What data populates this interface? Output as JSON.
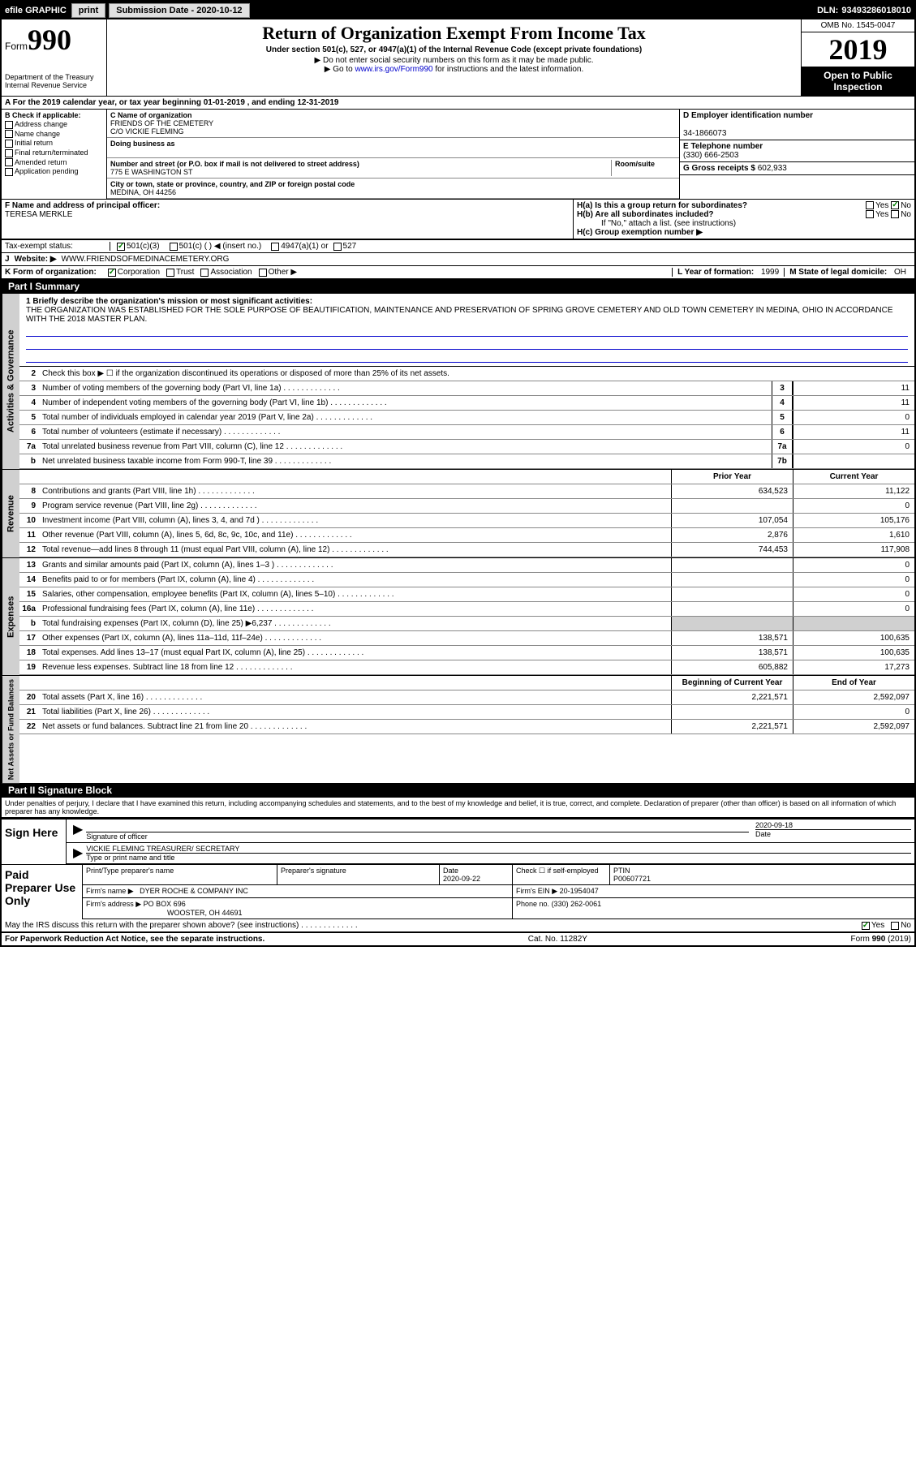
{
  "topbar": {
    "efile": "efile GRAPHIC",
    "print": "print",
    "subdate_lbl": "Submission Date -",
    "subdate": "2020-10-12",
    "dln_lbl": "DLN:",
    "dln": "93493286018010"
  },
  "header": {
    "form_lbl": "Form",
    "form_num": "990",
    "dept": "Department of the Treasury\nInternal Revenue Service",
    "title": "Return of Organization Exempt From Income Tax",
    "sub1": "Under section 501(c), 527, or 4947(a)(1) of the Internal Revenue Code (except private foundations)",
    "sub2": "▶ Do not enter social security numbers on this form as it may be made public.",
    "sub3_pre": "▶ Go to ",
    "sub3_link": "www.irs.gov/Form990",
    "sub3_post": " for instructions and the latest information.",
    "omb": "OMB No. 1545-0047",
    "year": "2019",
    "inspect": "Open to Public Inspection"
  },
  "taxyear": "A For the 2019 calendar year, or tax year beginning 01-01-2019    , and ending 12-31-2019",
  "sectionB": {
    "lbl": "B Check if applicable:",
    "opts": [
      "Address change",
      "Name change",
      "Initial return",
      "Final return/terminated",
      "Amended return",
      "Application pending"
    ]
  },
  "sectionC": {
    "name_lbl": "C Name of organization",
    "name": "FRIENDS OF THE CEMETERY",
    "care": "C/O VICKIE FLEMING",
    "dba_lbl": "Doing business as",
    "addr_lbl": "Number and street (or P.O. box if mail is not delivered to street address)",
    "room_lbl": "Room/suite",
    "addr": "775 E WASHINGTON ST",
    "city_lbl": "City or town, state or province, country, and ZIP or foreign postal code",
    "city": "MEDINA, OH  44256"
  },
  "sectionD": {
    "lbl": "D Employer identification number",
    "val": "34-1866073"
  },
  "sectionE": {
    "lbl": "E Telephone number",
    "val": "(330) 666-2503"
  },
  "sectionG": {
    "lbl": "G Gross receipts $",
    "val": "602,933"
  },
  "sectionF": {
    "lbl": "F  Name and address of principal officer:",
    "name": "TERESA MERKLE"
  },
  "sectionH": {
    "a": "H(a)  Is this a group return for subordinates?",
    "b": "H(b)  Are all subordinates included?",
    "b_note": "If \"No,\" attach a list. (see instructions)",
    "c": "H(c)  Group exemption number ▶",
    "yes": "Yes",
    "no": "No"
  },
  "taxstatus": {
    "lbl": "Tax-exempt status:",
    "o1": "501(c)(3)",
    "o2": "501(c) (  ) ◀ (insert no.)",
    "o3": "4947(a)(1) or",
    "o4": "527"
  },
  "website": {
    "lbl": "J",
    "lbl2": "Website: ▶",
    "val": "WWW.FRIENDSOFMEDINACEMETERY.ORG"
  },
  "sectionK": {
    "lbl": "K Form of organization:",
    "o1": "Corporation",
    "o2": "Trust",
    "o3": "Association",
    "o4": "Other ▶"
  },
  "sectionL": {
    "lbl": "L Year of formation:",
    "val": "1999"
  },
  "sectionM": {
    "lbl": "M State of legal domicile:",
    "val": "OH"
  },
  "part1": {
    "hdr": "Part I      Summary",
    "l1_lbl": "1  Briefly describe the organization's mission or most significant activities:",
    "l1_txt": "THE ORGANIZATION WAS ESTABLISHED FOR THE SOLE PURPOSE OF BEAUTIFICATION, MAINTENANCE AND PRESERVATION OF SPRING GROVE CEMETERY AND OLD TOWN CEMETERY IN MEDINA, OHIO IN ACCORDANCE WITH THE 2018 MASTER PLAN.",
    "l2": "Check this box ▶ ☐  if the organization discontinued its operations or disposed of more than 25% of its net assets.",
    "prior": "Prior Year",
    "current": "Current Year",
    "begin": "Beginning of Current Year",
    "end": "End of Year"
  },
  "gov_lines": [
    {
      "n": "3",
      "d": "Number of voting members of the governing body (Part VI, line 1a)",
      "box": "3",
      "v": "11"
    },
    {
      "n": "4",
      "d": "Number of independent voting members of the governing body (Part VI, line 1b)",
      "box": "4",
      "v": "11"
    },
    {
      "n": "5",
      "d": "Total number of individuals employed in calendar year 2019 (Part V, line 2a)",
      "box": "5",
      "v": "0"
    },
    {
      "n": "6",
      "d": "Total number of volunteers (estimate if necessary)",
      "box": "6",
      "v": "11"
    },
    {
      "n": "7a",
      "d": "Total unrelated business revenue from Part VIII, column (C), line 12",
      "box": "7a",
      "v": "0"
    },
    {
      "n": "b",
      "d": "Net unrelated business taxable income from Form 990-T, line 39",
      "box": "7b",
      "v": ""
    }
  ],
  "rev_lines": [
    {
      "n": "8",
      "d": "Contributions and grants (Part VIII, line 1h)",
      "p": "634,523",
      "c": "11,122"
    },
    {
      "n": "9",
      "d": "Program service revenue (Part VIII, line 2g)",
      "p": "",
      "c": "0"
    },
    {
      "n": "10",
      "d": "Investment income (Part VIII, column (A), lines 3, 4, and 7d )",
      "p": "107,054",
      "c": "105,176"
    },
    {
      "n": "11",
      "d": "Other revenue (Part VIII, column (A), lines 5, 6d, 8c, 9c, 10c, and 11e)",
      "p": "2,876",
      "c": "1,610"
    },
    {
      "n": "12",
      "d": "Total revenue—add lines 8 through 11 (must equal Part VIII, column (A), line 12)",
      "p": "744,453",
      "c": "117,908"
    }
  ],
  "exp_lines": [
    {
      "n": "13",
      "d": "Grants and similar amounts paid (Part IX, column (A), lines 1–3 )",
      "p": "",
      "c": "0"
    },
    {
      "n": "14",
      "d": "Benefits paid to or for members (Part IX, column (A), line 4)",
      "p": "",
      "c": "0"
    },
    {
      "n": "15",
      "d": "Salaries, other compensation, employee benefits (Part IX, column (A), lines 5–10)",
      "p": "",
      "c": "0"
    },
    {
      "n": "16a",
      "d": "Professional fundraising fees (Part IX, column (A), line 11e)",
      "p": "",
      "c": "0"
    },
    {
      "n": "b",
      "d": "Total fundraising expenses (Part IX, column (D), line 25) ▶6,237",
      "p": "shade",
      "c": "shade"
    },
    {
      "n": "17",
      "d": "Other expenses (Part IX, column (A), lines 11a–11d, 11f–24e)",
      "p": "138,571",
      "c": "100,635"
    },
    {
      "n": "18",
      "d": "Total expenses. Add lines 13–17 (must equal Part IX, column (A), line 25)",
      "p": "138,571",
      "c": "100,635"
    },
    {
      "n": "19",
      "d": "Revenue less expenses. Subtract line 18 from line 12",
      "p": "605,882",
      "c": "17,273"
    }
  ],
  "net_lines": [
    {
      "n": "20",
      "d": "Total assets (Part X, line 16)",
      "p": "2,221,571",
      "c": "2,592,097"
    },
    {
      "n": "21",
      "d": "Total liabilities (Part X, line 26)",
      "p": "",
      "c": "0"
    },
    {
      "n": "22",
      "d": "Net assets or fund balances. Subtract line 21 from line 20",
      "p": "2,221,571",
      "c": "2,592,097"
    }
  ],
  "vtabs": {
    "gov": "Activities & Governance",
    "rev": "Revenue",
    "exp": "Expenses",
    "net": "Net Assets or Fund Balances"
  },
  "part2": {
    "hdr": "Part II      Signature Block",
    "decl": "Under penalties of perjury, I declare that I have examined this return, including accompanying schedules and statements, and to the best of my knowledge and belief, it is true, correct, and complete. Declaration of preparer (other than officer) is based on all information of which preparer has any knowledge."
  },
  "sign": {
    "here": "Sign Here",
    "sig_lbl": "Signature of officer",
    "date_lbl": "Date",
    "date": "2020-09-18",
    "name": "VICKIE FLEMING  TREASURER/ SECRETARY",
    "name_lbl": "Type or print name and title"
  },
  "paid": {
    "lbl": "Paid Preparer Use Only",
    "c1": "Print/Type preparer's name",
    "c2": "Preparer's signature",
    "c3": "Date",
    "c3v": "2020-09-22",
    "c4": "Check ☐  if self-employed",
    "c5": "PTIN",
    "c5v": "P00607721",
    "firm_lbl": "Firm's name    ▶",
    "firm": "DYER ROCHE & COMPANY INC",
    "ein_lbl": "Firm's EIN ▶",
    "ein": "20-1954047",
    "addr_lbl": "Firm's address ▶",
    "addr1": "PO BOX 696",
    "addr2": "WOOSTER, OH  44691",
    "phone_lbl": "Phone no.",
    "phone": "(330) 262-0061",
    "discuss": "May the IRS discuss this return with the preparer shown above? (see instructions)",
    "yes": "Yes",
    "no": "No"
  },
  "footer": {
    "left": "For Paperwork Reduction Act Notice, see the separate instructions.",
    "mid": "Cat. No. 11282Y",
    "right": "Form 990 (2019)"
  }
}
